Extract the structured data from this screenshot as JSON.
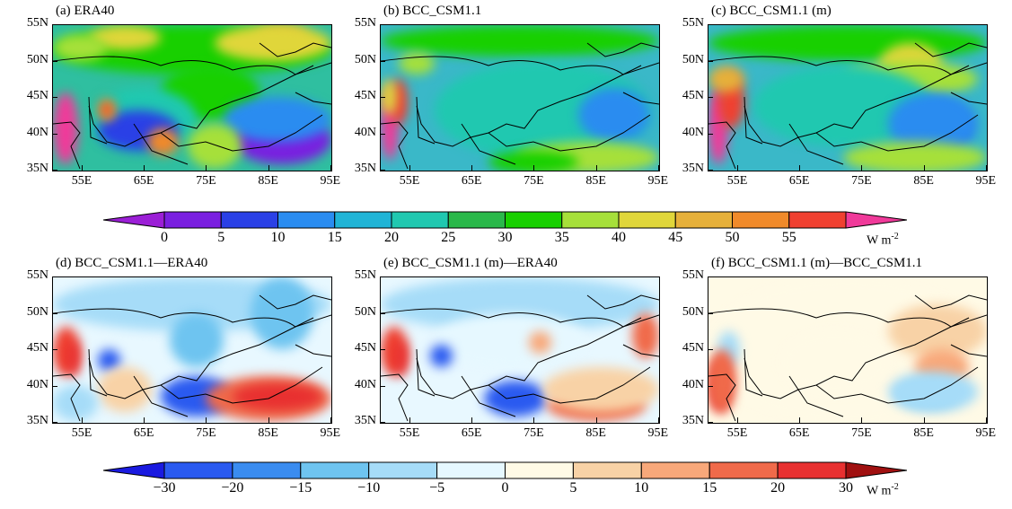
{
  "panels_top": [
    {
      "title": "(a)  ERA40"
    },
    {
      "title": "(b)  BCC_CSM1.1"
    },
    {
      "title": "(c)  BCC_CSM1.1 (m)"
    }
  ],
  "panels_bottom": [
    {
      "title": "(d)  BCC_CSM1.1—ERA40"
    },
    {
      "title": "(e)  BCC_CSM1.1 (m)—ERA40"
    },
    {
      "title": "(f)  BCC_CSM1.1 (m)—BCC_CSM1.1"
    }
  ],
  "lat_labels": [
    "55N",
    "50N",
    "45N",
    "40N",
    "35N"
  ],
  "lon_labels": [
    "55E",
    "65E",
    "75E",
    "85E",
    "95E"
  ],
  "colorbar_top": {
    "labels": [
      "0",
      "5",
      "10",
      "15",
      "20",
      "25",
      "30",
      "35",
      "40",
      "45",
      "50",
      "55"
    ],
    "units_main": "W m",
    "units_exp": "-2",
    "colors": [
      "#9b1fd6",
      "#7a1fe0",
      "#2a40e6",
      "#2a8cf0",
      "#20b4d6",
      "#20c8b0",
      "#2ab84a",
      "#18d000",
      "#a6e03a",
      "#e0d63a",
      "#e6b03a",
      "#f08a2a",
      "#f04030",
      "#f03a9a"
    ]
  },
  "colorbar_bottom": {
    "labels": [
      "−30",
      "−20",
      "−15",
      "−10",
      "−5",
      "0",
      "5",
      "10",
      "15",
      "20",
      "30"
    ],
    "units_main": "W m",
    "units_exp": "-2",
    "colors": [
      "#1a1ae0",
      "#2a5af0",
      "#3a8cf0",
      "#6ec4f0",
      "#a6dcf8",
      "#e6f8ff",
      "#fffae6",
      "#f8d2a6",
      "#f8a87a",
      "#f06a4a",
      "#e83030",
      "#a01010"
    ]
  },
  "fields": {
    "a": {
      "base": "#2fbfa0"
    },
    "b": {
      "base": "#3ab8c8"
    },
    "c": {
      "base": "#3ab8c8"
    },
    "d": {
      "base": "#e8f8ff"
    },
    "e": {
      "base": "#e8f8ff"
    },
    "f": {
      "base": "#fffae6"
    }
  }
}
